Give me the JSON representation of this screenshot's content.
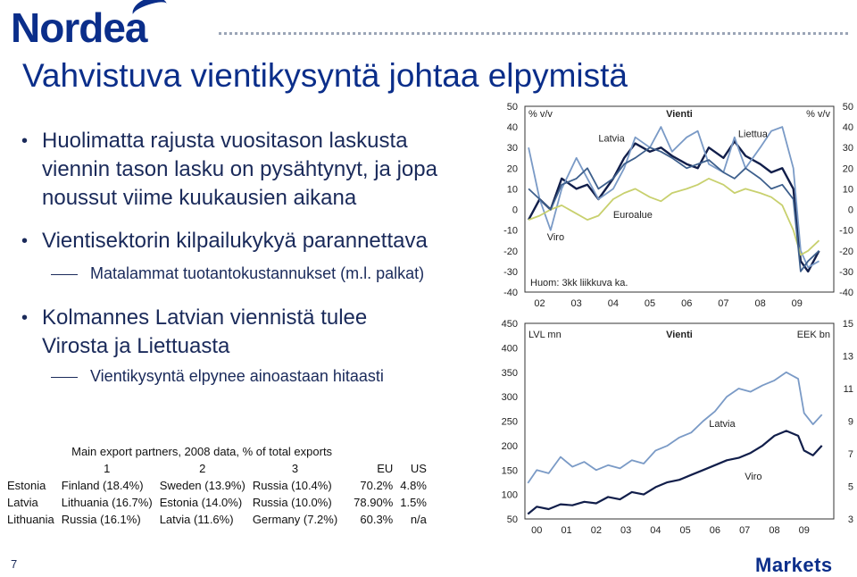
{
  "header": {
    "logo_text": "Nordea",
    "footer_brand": "Markets",
    "page_number": "7"
  },
  "title": "Vahvistuva vientikysyntä johtaa elpymistä",
  "bullets": [
    {
      "text": "Huolimatta rajusta vuositason laskusta viennin tason lasku on pysähtynyt, ja jopa noussut viime kuukausien aikana"
    },
    {
      "text": "Vientisektorin kilpailukykyä parannettava",
      "sub": "Matalammat tuotantokustannukset (m.l. palkat)"
    },
    {
      "text": "Kolmannes Latvian viennistä tulee Virosta ja Liettuasta",
      "sub": "Vientikysyntä elpynee ainoastaan hitaasti"
    }
  ],
  "table": {
    "caption": "Main export partners, 2008 data, % of total exports",
    "headers": [
      "",
      "1",
      "2",
      "3",
      "EU",
      "US"
    ],
    "rows": [
      [
        "Estonia",
        "Finland (18.4%)",
        "Sweden (13.9%)",
        "Russia (10.4%)",
        "70.2%",
        "4.8%"
      ],
      [
        "Latvia",
        "Lithuania (16.7%)",
        "Estonia (14.0%)",
        "Russia (10.0%)",
        "78.90%",
        "1.5%"
      ],
      [
        "Lithuania",
        "Russia (16.1%)",
        "Latvia (11.6%)",
        "Germany (7.2%)",
        "60.3%",
        "n/a"
      ]
    ]
  },
  "chart_data": [
    {
      "type": "line",
      "title": "Vienti",
      "ylabel_left": "% v/v",
      "ylabel_right": "% v/v",
      "note": "Huom: 3kk liikkuva ka.",
      "ylim": [
        -40,
        50
      ],
      "yticks": [
        -40,
        -30,
        -20,
        -10,
        0,
        10,
        20,
        30,
        40,
        50
      ],
      "xticks": [
        "02",
        "03",
        "04",
        "05",
        "06",
        "07",
        "08",
        "09"
      ],
      "xlim": [
        2001.6,
        2010.0
      ],
      "colors": {
        "Latvia": "#111e4a",
        "Liettua": "#7a9ac6",
        "Euroalue": "#c8d06e",
        "Viro": "#3d5f8c"
      },
      "series": [
        {
          "name": "Latvia",
          "x": [
            2001.7,
            2002.0,
            2002.3,
            2002.6,
            2003.0,
            2003.3,
            2003.6,
            2004.0,
            2004.3,
            2004.6,
            2005.0,
            2005.3,
            2005.6,
            2006.0,
            2006.3,
            2006.6,
            2007.0,
            2007.3,
            2007.6,
            2008.0,
            2008.3,
            2008.6,
            2008.9,
            2009.1,
            2009.3,
            2009.6
          ],
          "values": [
            -5,
            5,
            0,
            15,
            10,
            12,
            5,
            15,
            25,
            32,
            28,
            30,
            26,
            22,
            20,
            30,
            25,
            33,
            26,
            22,
            18,
            20,
            10,
            -25,
            -30,
            -20
          ]
        },
        {
          "name": "Liettua",
          "x": [
            2001.7,
            2002.0,
            2002.3,
            2002.6,
            2003.0,
            2003.3,
            2003.6,
            2004.0,
            2004.3,
            2004.6,
            2005.0,
            2005.3,
            2005.6,
            2006.0,
            2006.3,
            2006.6,
            2007.0,
            2007.3,
            2007.6,
            2008.0,
            2008.3,
            2008.6,
            2008.9,
            2009.1,
            2009.3,
            2009.6
          ],
          "values": [
            30,
            5,
            -10,
            10,
            25,
            15,
            5,
            10,
            20,
            35,
            30,
            40,
            28,
            35,
            38,
            22,
            18,
            35,
            20,
            30,
            38,
            40,
            20,
            -20,
            -28,
            -25
          ]
        },
        {
          "name": "Euroalue",
          "x": [
            2001.7,
            2002.0,
            2002.3,
            2002.6,
            2003.0,
            2003.3,
            2003.6,
            2004.0,
            2004.3,
            2004.6,
            2005.0,
            2005.3,
            2005.6,
            2006.0,
            2006.3,
            2006.6,
            2007.0,
            2007.3,
            2007.6,
            2008.0,
            2008.3,
            2008.6,
            2008.9,
            2009.1,
            2009.3,
            2009.6
          ],
          "values": [
            -5,
            -3,
            0,
            2,
            -2,
            -5,
            -3,
            5,
            8,
            10,
            6,
            4,
            8,
            10,
            12,
            15,
            12,
            8,
            10,
            8,
            6,
            2,
            -10,
            -22,
            -20,
            -15
          ]
        },
        {
          "name": "Viro",
          "x": [
            2001.7,
            2002.0,
            2002.3,
            2002.6,
            2003.0,
            2003.3,
            2003.6,
            2004.0,
            2004.3,
            2004.6,
            2005.0,
            2005.3,
            2005.6,
            2006.0,
            2006.3,
            2006.6,
            2007.0,
            2007.3,
            2007.6,
            2008.0,
            2008.3,
            2008.6,
            2008.9,
            2009.1,
            2009.3,
            2009.6
          ],
          "values": [
            10,
            5,
            0,
            12,
            15,
            20,
            10,
            15,
            22,
            25,
            30,
            28,
            25,
            20,
            22,
            24,
            18,
            15,
            20,
            15,
            10,
            12,
            5,
            -30,
            -25,
            -20
          ]
        }
      ]
    },
    {
      "type": "line",
      "title": "Vienti",
      "ylabel_left": "LVL mn",
      "ylabel_right": "EEK bn",
      "ylim_left": [
        50,
        450
      ],
      "yticks_left": [
        50,
        100,
        150,
        200,
        250,
        300,
        350,
        400,
        450
      ],
      "ylim_right": [
        3,
        15
      ],
      "yticks_right": [
        3,
        5,
        7,
        9,
        11,
        13,
        15
      ],
      "xticks": [
        "00",
        "01",
        "02",
        "03",
        "04",
        "05",
        "06",
        "07",
        "08",
        "09"
      ],
      "xlim": [
        1999.6,
        2010.0
      ],
      "colors": {
        "Latvia": "#111e4a",
        "Viro": "#7a9ac6"
      },
      "series": [
        {
          "name": "Latvia",
          "axis": "left",
          "x": [
            1999.7,
            2000.0,
            2000.4,
            2000.8,
            2001.2,
            2001.6,
            2002.0,
            2002.4,
            2002.8,
            2003.2,
            2003.6,
            2004.0,
            2004.4,
            2004.8,
            2005.2,
            2005.6,
            2006.0,
            2006.4,
            2006.8,
            2007.2,
            2007.6,
            2008.0,
            2008.4,
            2008.8,
            2009.0,
            2009.3,
            2009.6
          ],
          "values": [
            60,
            75,
            70,
            80,
            78,
            85,
            82,
            95,
            90,
            105,
            100,
            115,
            125,
            130,
            140,
            150,
            160,
            170,
            175,
            185,
            200,
            220,
            230,
            220,
            190,
            180,
            200
          ]
        },
        {
          "name": "Viro",
          "axis": "right",
          "x": [
            1999.7,
            2000.0,
            2000.4,
            2000.8,
            2001.2,
            2001.6,
            2002.0,
            2002.4,
            2002.8,
            2003.2,
            2003.6,
            2004.0,
            2004.4,
            2004.8,
            2005.2,
            2005.6,
            2006.0,
            2006.4,
            2006.8,
            2007.2,
            2007.6,
            2008.0,
            2008.4,
            2008.8,
            2009.0,
            2009.3,
            2009.6
          ],
          "values": [
            5.2,
            6.0,
            5.8,
            6.8,
            6.2,
            6.5,
            6.0,
            6.3,
            6.1,
            6.6,
            6.4,
            7.2,
            7.5,
            8.0,
            8.3,
            9.0,
            9.6,
            10.5,
            11.0,
            10.8,
            11.2,
            11.5,
            12.0,
            11.6,
            9.5,
            8.8,
            9.4
          ]
        }
      ]
    }
  ]
}
